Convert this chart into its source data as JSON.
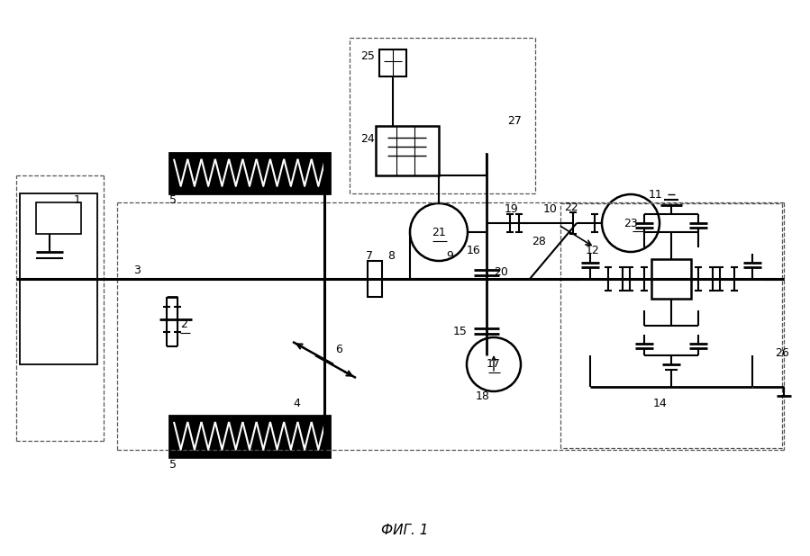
{
  "title": "ФИГ. 1",
  "bg_color": "#ffffff",
  "lc": "#000000",
  "dc": "#555555",
  "figsize": [
    8.99,
    6.18
  ],
  "dpi": 100
}
